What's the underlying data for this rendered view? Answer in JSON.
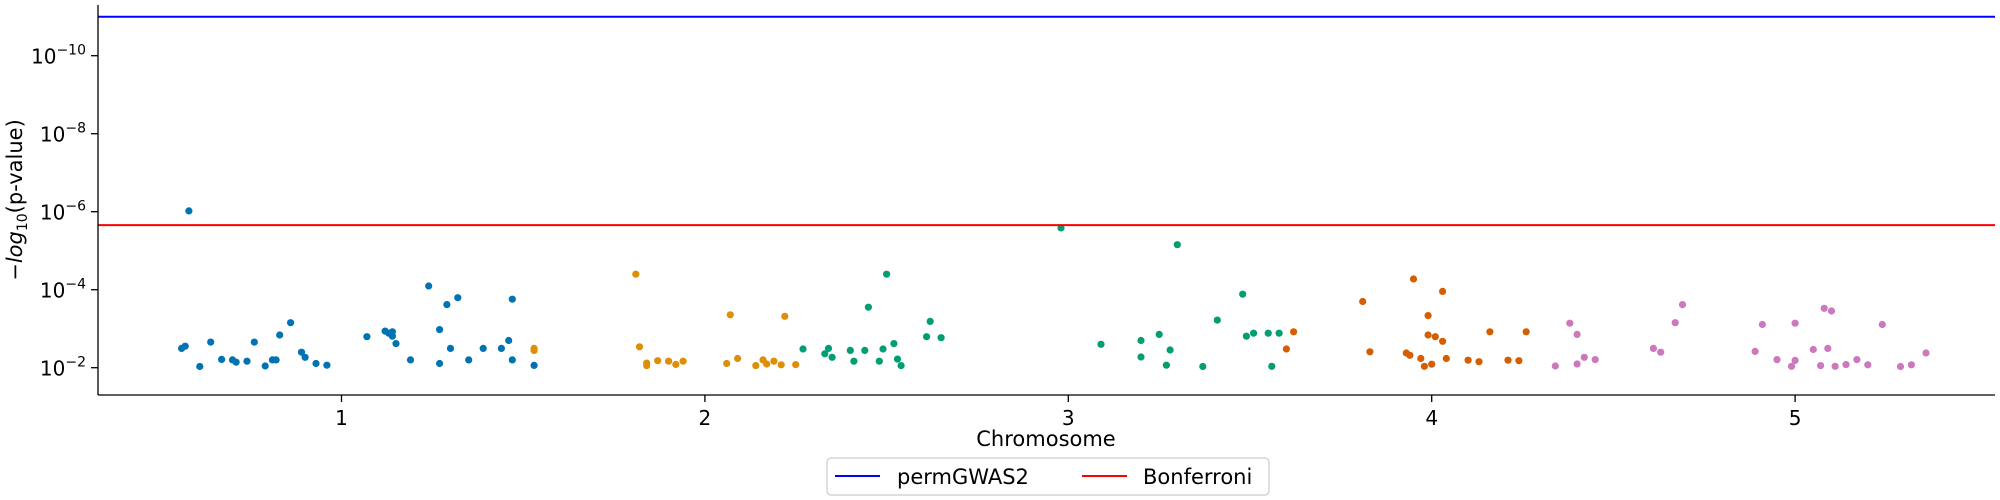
{
  "chart_data": {
    "type": "scatter",
    "title": "",
    "xlabel": "Chromosome",
    "ylabel": "-log10(p-value)",
    "yscale": "log",
    "y_inverted": true,
    "ylim": [
      0.05,
      5e-12
    ],
    "xlim": [
      0.33,
      5.55
    ],
    "grid": false,
    "x_ticks": [
      {
        "value": 1,
        "label": "1"
      },
      {
        "value": 2,
        "label": "2"
      },
      {
        "value": 3,
        "label": "3"
      },
      {
        "value": 4,
        "label": "4"
      },
      {
        "value": 5,
        "label": "5"
      }
    ],
    "y_ticks": [
      {
        "value": 0.01,
        "base": "10",
        "exp": "−2"
      },
      {
        "value": 0.0001,
        "base": "10",
        "exp": "−4"
      },
      {
        "value": 1e-06,
        "base": "10",
        "exp": "−6"
      },
      {
        "value": 1e-08,
        "base": "10",
        "exp": "−8"
      },
      {
        "value": 1e-10,
        "base": "10",
        "exp": "−10"
      }
    ],
    "ylabel_parts": {
      "prefix": "−",
      "log": "log",
      "sub": "10",
      "suffix": "(p-value)"
    },
    "thresholds": [
      {
        "name": "permGWAS2",
        "value": 1e-11,
        "color": "#0000ff"
      },
      {
        "name": "Bonferroni",
        "value": 2.2e-06,
        "color": "#ff0000"
      }
    ],
    "legend": {
      "placement": "bottom-center"
    },
    "series": [
      {
        "name": "1",
        "color": "#0173b2",
        "points": [
          [
            0.56,
            0.0032
          ],
          [
            0.57,
            0.0028
          ],
          [
            0.58,
            9.5e-07
          ],
          [
            0.61,
            0.0093
          ],
          [
            0.64,
            0.0022
          ],
          [
            0.67,
            0.0061
          ],
          [
            0.7,
            0.0063
          ],
          [
            0.71,
            0.0072
          ],
          [
            0.74,
            0.0068
          ],
          [
            0.76,
            0.0022
          ],
          [
            0.79,
            0.009
          ],
          [
            0.81,
            0.0063
          ],
          [
            0.82,
            0.0063
          ],
          [
            0.83,
            0.00145
          ],
          [
            0.86,
            0.0007
          ],
          [
            0.89,
            0.004
          ],
          [
            0.9,
            0.0054
          ],
          [
            0.93,
            0.0078
          ],
          [
            0.96,
            0.0086
          ],
          [
            1.07,
            0.0016
          ],
          [
            1.12,
            0.00115
          ],
          [
            1.13,
            0.0013
          ],
          [
            1.14,
            0.00155
          ],
          [
            1.14,
            0.0012
          ],
          [
            1.15,
            0.0024
          ],
          [
            1.19,
            0.0063
          ],
          [
            1.24,
            8e-05
          ],
          [
            1.27,
            0.00105
          ],
          [
            1.29,
            0.00024
          ],
          [
            1.32,
            0.00016
          ],
          [
            1.27,
            0.0078
          ],
          [
            1.3,
            0.0032
          ],
          [
            1.35,
            0.0063
          ],
          [
            1.39,
            0.0032
          ],
          [
            1.44,
            0.0032
          ],
          [
            1.46,
            0.002
          ],
          [
            1.47,
            0.000175
          ],
          [
            1.47,
            0.0063
          ],
          [
            1.53,
            0.0087
          ]
        ]
      },
      {
        "name": "2",
        "color": "#de8f05",
        "points": [
          [
            1.53,
            0.0036
          ],
          [
            1.53,
            0.0032
          ],
          [
            1.81,
            4e-05
          ],
          [
            1.82,
            0.0029
          ],
          [
            1.84,
            0.0076
          ],
          [
            1.84,
            0.0088
          ],
          [
            1.87,
            0.0066
          ],
          [
            1.9,
            0.0068
          ],
          [
            1.92,
            0.0082
          ],
          [
            1.94,
            0.0068
          ],
          [
            2.06,
            0.0078
          ],
          [
            2.07,
            0.00044
          ],
          [
            2.09,
            0.0058
          ],
          [
            2.14,
            0.0088
          ],
          [
            2.16,
            0.0063
          ],
          [
            2.17,
            0.008
          ],
          [
            2.19,
            0.0068
          ],
          [
            2.21,
            0.0084
          ],
          [
            2.22,
            0.00048
          ],
          [
            2.25,
            0.0083
          ]
        ]
      },
      {
        "name": "3",
        "color": "#029e73",
        "points": [
          [
            2.27,
            0.0033
          ],
          [
            2.33,
            0.0044
          ],
          [
            2.34,
            0.0032
          ],
          [
            2.35,
            0.0054
          ],
          [
            2.4,
            0.0036
          ],
          [
            2.41,
            0.0068
          ],
          [
            2.44,
            0.0036
          ],
          [
            2.45,
            0.00028
          ],
          [
            2.48,
            0.0068
          ],
          [
            2.49,
            0.0033
          ],
          [
            2.5,
            4e-05
          ],
          [
            2.52,
            0.0024
          ],
          [
            2.53,
            0.006
          ],
          [
            2.54,
            0.0088
          ],
          [
            2.61,
            0.0016
          ],
          [
            2.62,
            0.00065
          ],
          [
            2.65,
            0.0017
          ],
          [
            2.98,
            2.6e-06
          ],
          [
            3.09,
            0.0025
          ],
          [
            3.2,
            0.002
          ],
          [
            3.2,
            0.0053
          ],
          [
            3.25,
            0.0014
          ],
          [
            3.27,
            0.0086
          ],
          [
            3.28,
            0.0035
          ],
          [
            3.3,
            7e-06
          ],
          [
            3.37,
            0.0093
          ],
          [
            3.41,
            0.0006
          ],
          [
            3.48,
            0.00013
          ],
          [
            3.49,
            0.00155
          ],
          [
            3.51,
            0.0013
          ],
          [
            3.55,
            0.0013
          ],
          [
            3.56,
            0.0092
          ],
          [
            3.58,
            0.0013
          ]
        ]
      },
      {
        "name": "4",
        "color": "#d55e00",
        "points": [
          [
            3.6,
            0.0033
          ],
          [
            3.62,
            0.0012
          ],
          [
            3.81,
            0.0002
          ],
          [
            3.83,
            0.0039
          ],
          [
            3.93,
            0.0042
          ],
          [
            3.94,
            0.0048
          ],
          [
            3.95,
            5.3e-05
          ],
          [
            3.97,
            0.0058
          ],
          [
            3.98,
            0.0092
          ],
          [
            3.99,
            0.00046
          ],
          [
            3.99,
            0.00145
          ],
          [
            4.0,
            0.0081
          ],
          [
            4.01,
            0.0016
          ],
          [
            4.03,
            0.00011
          ],
          [
            4.03,
            0.0021
          ],
          [
            4.04,
            0.0058
          ],
          [
            4.1,
            0.0064
          ],
          [
            4.13,
            0.007
          ],
          [
            4.16,
            0.0012
          ],
          [
            4.21,
            0.0064
          ],
          [
            4.24,
            0.0066
          ],
          [
            4.26,
            0.0012
          ]
        ]
      },
      {
        "name": "5",
        "color": "#cc78bc",
        "points": [
          [
            4.34,
            0.009
          ],
          [
            4.38,
            0.00072
          ],
          [
            4.4,
            0.0014
          ],
          [
            4.4,
            0.008
          ],
          [
            4.42,
            0.0054
          ],
          [
            4.45,
            0.0062
          ],
          [
            4.61,
            0.0032
          ],
          [
            4.63,
            0.004
          ],
          [
            4.67,
            0.0007
          ],
          [
            4.69,
            0.00024
          ],
          [
            4.89,
            0.0038
          ],
          [
            4.91,
            0.00078
          ],
          [
            4.95,
            0.0062
          ],
          [
            4.99,
            0.0092
          ],
          [
            5.0,
            0.00072
          ],
          [
            5.0,
            0.0065
          ],
          [
            5.05,
            0.0034
          ],
          [
            5.07,
            0.0088
          ],
          [
            5.08,
            0.0003
          ],
          [
            5.09,
            0.0032
          ],
          [
            5.1,
            0.00035
          ],
          [
            5.11,
            0.0092
          ],
          [
            5.14,
            0.0083
          ],
          [
            5.17,
            0.0062
          ],
          [
            5.2,
            0.0084
          ],
          [
            5.24,
            0.00078
          ],
          [
            5.29,
            0.0093
          ],
          [
            5.32,
            0.0084
          ],
          [
            5.36,
            0.0042
          ]
        ]
      }
    ]
  }
}
